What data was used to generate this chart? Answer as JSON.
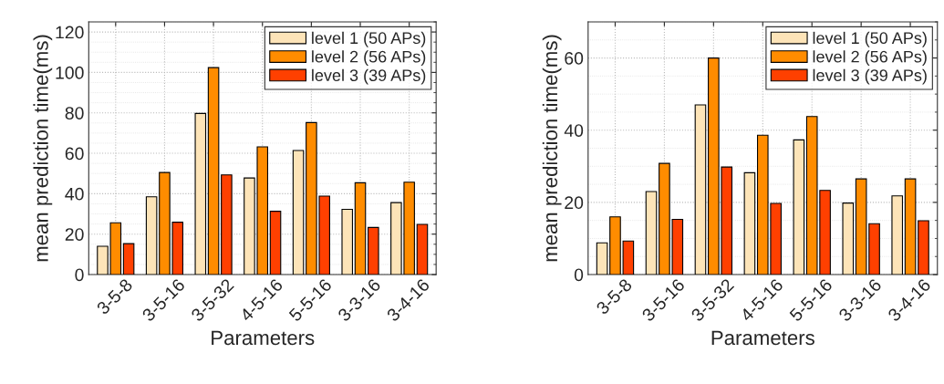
{
  "chart_data": [
    {
      "type": "bar",
      "xlabel": "Parameters",
      "ylabel": "mean prediction time(ms)",
      "categories": [
        "3-5-8",
        "3-5-16",
        "3-5-32",
        "4-5-16",
        "5-5-16",
        "3-3-16",
        "3-4-16"
      ],
      "ylim": [
        0,
        125
      ],
      "yticks": [
        0,
        20,
        40,
        60,
        80,
        100,
        120
      ],
      "grid": true,
      "legend": "top right",
      "series": [
        {
          "name": "level 1 (50 APs)",
          "color": "#fde4b8",
          "values": [
            14,
            38.5,
            79.7,
            47.8,
            61.4,
            32.3,
            35.6
          ]
        },
        {
          "name": "level 2 (56 APs)",
          "color": "#ff8c00",
          "values": [
            25.6,
            50.5,
            102.4,
            63.2,
            75.2,
            45.4,
            45.7
          ]
        },
        {
          "name": "level 3 (39 APs)",
          "color": "#ff4000",
          "values": [
            15.3,
            25.9,
            49.3,
            31.3,
            38.8,
            23.3,
            24.8
          ]
        }
      ]
    },
    {
      "type": "bar",
      "xlabel": "Parameters",
      "ylabel": "mean prediction time(ms)",
      "categories": [
        "3-5-8",
        "3-5-16",
        "3-5-32",
        "4-5-16",
        "5-5-16",
        "3-3-16",
        "3-4-16"
      ],
      "ylim": [
        0,
        70
      ],
      "yticks": [
        0,
        20,
        40,
        60
      ],
      "grid": true,
      "legend": "top right",
      "series": [
        {
          "name": "level 1 (50 APs)",
          "color": "#fde4b8",
          "values": [
            8.8,
            23,
            47,
            28.2,
            37.3,
            19.8,
            21.8
          ]
        },
        {
          "name": "level 2 (56 APs)",
          "color": "#ff8c00",
          "values": [
            16,
            30.8,
            60,
            38.6,
            43.8,
            26.5,
            26.5
          ]
        },
        {
          "name": "level 3 (39 APs)",
          "color": "#ff4000",
          "values": [
            9.3,
            15.3,
            29.8,
            19.7,
            23.3,
            14.1,
            14.9
          ]
        }
      ]
    }
  ]
}
